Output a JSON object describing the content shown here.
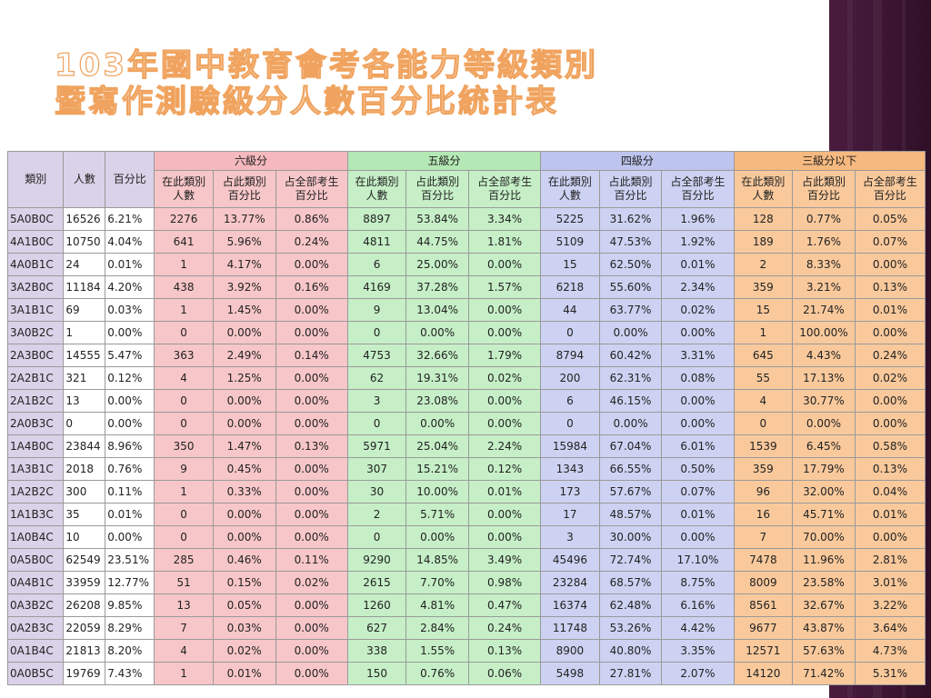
{
  "title": {
    "line1": "103年國中教育會考各能力等級類別",
    "line2": "暨寫作測驗級分人數百分比統計表"
  },
  "table": {
    "col_category": "類別",
    "col_count": "人數",
    "col_percent": "百分比",
    "groups": [
      "六級分",
      "五級分",
      "四級分",
      "三級分以下"
    ],
    "sub_headers": {
      "count": "在此類別\n人數",
      "cat_pct": "占此類別\n百分比",
      "all_pct": "占全部考生\n百分比"
    },
    "rows": [
      [
        "5A0B0C",
        "16526",
        "6.21%",
        "2276",
        "13.77%",
        "0.86%",
        "8897",
        "53.84%",
        "3.34%",
        "5225",
        "31.62%",
        "1.96%",
        "128",
        "0.77%",
        "0.05%"
      ],
      [
        "4A1B0C",
        "10750",
        "4.04%",
        "641",
        "5.96%",
        "0.24%",
        "4811",
        "44.75%",
        "1.81%",
        "5109",
        "47.53%",
        "1.92%",
        "189",
        "1.76%",
        "0.07%"
      ],
      [
        "4A0B1C",
        "24",
        "0.01%",
        "1",
        "4.17%",
        "0.00%",
        "6",
        "25.00%",
        "0.00%",
        "15",
        "62.50%",
        "0.01%",
        "2",
        "8.33%",
        "0.00%"
      ],
      [
        "3A2B0C",
        "11184",
        "4.20%",
        "438",
        "3.92%",
        "0.16%",
        "4169",
        "37.28%",
        "1.57%",
        "6218",
        "55.60%",
        "2.34%",
        "359",
        "3.21%",
        "0.13%"
      ],
      [
        "3A1B1C",
        "69",
        "0.03%",
        "1",
        "1.45%",
        "0.00%",
        "9",
        "13.04%",
        "0.00%",
        "44",
        "63.77%",
        "0.02%",
        "15",
        "21.74%",
        "0.01%"
      ],
      [
        "3A0B2C",
        "1",
        "0.00%",
        "0",
        "0.00%",
        "0.00%",
        "0",
        "0.00%",
        "0.00%",
        "0",
        "0.00%",
        "0.00%",
        "1",
        "100.00%",
        "0.00%"
      ],
      [
        "2A3B0C",
        "14555",
        "5.47%",
        "363",
        "2.49%",
        "0.14%",
        "4753",
        "32.66%",
        "1.79%",
        "8794",
        "60.42%",
        "3.31%",
        "645",
        "4.43%",
        "0.24%"
      ],
      [
        "2A2B1C",
        "321",
        "0.12%",
        "4",
        "1.25%",
        "0.00%",
        "62",
        "19.31%",
        "0.02%",
        "200",
        "62.31%",
        "0.08%",
        "55",
        "17.13%",
        "0.02%"
      ],
      [
        "2A1B2C",
        "13",
        "0.00%",
        "0",
        "0.00%",
        "0.00%",
        "3",
        "23.08%",
        "0.00%",
        "6",
        "46.15%",
        "0.00%",
        "4",
        "30.77%",
        "0.00%"
      ],
      [
        "2A0B3C",
        "0",
        "0.00%",
        "0",
        "0.00%",
        "0.00%",
        "0",
        "0.00%",
        "0.00%",
        "0",
        "0.00%",
        "0.00%",
        "0",
        "0.00%",
        "0.00%"
      ],
      [
        "1A4B0C",
        "23844",
        "8.96%",
        "350",
        "1.47%",
        "0.13%",
        "5971",
        "25.04%",
        "2.24%",
        "15984",
        "67.04%",
        "6.01%",
        "1539",
        "6.45%",
        "0.58%"
      ],
      [
        "1A3B1C",
        "2018",
        "0.76%",
        "9",
        "0.45%",
        "0.00%",
        "307",
        "15.21%",
        "0.12%",
        "1343",
        "66.55%",
        "0.50%",
        "359",
        "17.79%",
        "0.13%"
      ],
      [
        "1A2B2C",
        "300",
        "0.11%",
        "1",
        "0.33%",
        "0.00%",
        "30",
        "10.00%",
        "0.01%",
        "173",
        "57.67%",
        "0.07%",
        "96",
        "32.00%",
        "0.04%"
      ],
      [
        "1A1B3C",
        "35",
        "0.01%",
        "0",
        "0.00%",
        "0.00%",
        "2",
        "5.71%",
        "0.00%",
        "17",
        "48.57%",
        "0.01%",
        "16",
        "45.71%",
        "0.01%"
      ],
      [
        "1A0B4C",
        "10",
        "0.00%",
        "0",
        "0.00%",
        "0.00%",
        "0",
        "0.00%",
        "0.00%",
        "3",
        "30.00%",
        "0.00%",
        "7",
        "70.00%",
        "0.00%"
      ],
      [
        "0A5B0C",
        "62549",
        "23.51%",
        "285",
        "0.46%",
        "0.11%",
        "9290",
        "14.85%",
        "3.49%",
        "45496",
        "72.74%",
        "17.10%",
        "7478",
        "11.96%",
        "2.81%"
      ],
      [
        "0A4B1C",
        "33959",
        "12.77%",
        "51",
        "0.15%",
        "0.02%",
        "2615",
        "7.70%",
        "0.98%",
        "23284",
        "68.57%",
        "8.75%",
        "8009",
        "23.58%",
        "3.01%"
      ],
      [
        "0A3B2C",
        "26208",
        "9.85%",
        "13",
        "0.05%",
        "0.00%",
        "1260",
        "4.81%",
        "0.47%",
        "16374",
        "62.48%",
        "6.16%",
        "8561",
        "32.67%",
        "3.22%"
      ],
      [
        "0A2B3C",
        "22059",
        "8.29%",
        "7",
        "0.03%",
        "0.00%",
        "627",
        "2.84%",
        "0.24%",
        "11748",
        "53.26%",
        "4.42%",
        "9677",
        "43.87%",
        "3.64%"
      ],
      [
        "0A1B4C",
        "21813",
        "8.20%",
        "4",
        "0.02%",
        "0.00%",
        "338",
        "1.55%",
        "0.13%",
        "8900",
        "40.80%",
        "3.35%",
        "12571",
        "57.63%",
        "4.73%"
      ],
      [
        "0A0B5C",
        "19769",
        "7.43%",
        "1",
        "0.01%",
        "0.00%",
        "150",
        "0.76%",
        "0.06%",
        "5498",
        "27.81%",
        "2.07%",
        "14120",
        "71.42%",
        "5.31%"
      ]
    ]
  },
  "colors": {
    "title_outline": "#f0a35e",
    "band_purple": "#4a1c3e",
    "pink": "#f7c6c8",
    "green": "#c6efc7",
    "lavender": "#cdd2f2",
    "orange": "#f9c99c",
    "gray": "#d9d2e8"
  }
}
